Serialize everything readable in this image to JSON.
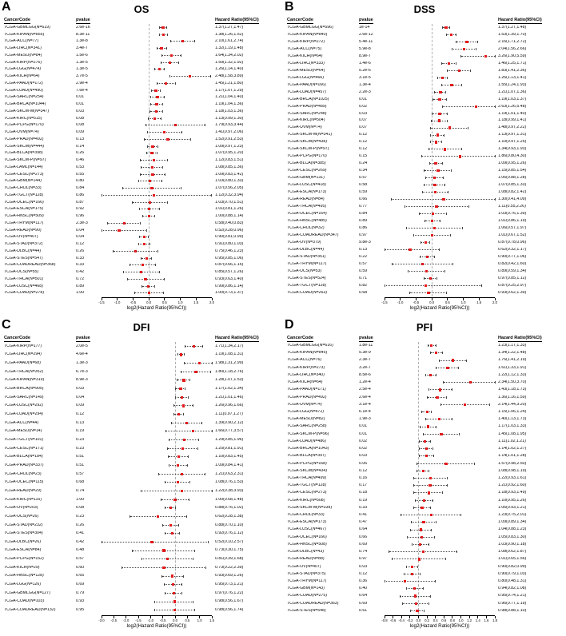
{
  "figure": {
    "background": "#ffffff",
    "point_color": "#e31a1c",
    "ci_line_color": "#444444",
    "zero_line_style": "dashed"
  },
  "chart_data": [
    {
      "type": "forest",
      "panel_letter": "A",
      "title": "OS",
      "xlabel": "log2(Hazard Ratio(95%CI))",
      "columns": [
        "CancerCode",
        "pvalue",
        "Hazard Ratio(95%CI)"
      ],
      "xlim": [
        -1.5,
        2.0
      ],
      "xticks": [
        -1.5,
        -1.0,
        -0.5,
        0.0,
        0.5,
        1.0,
        1.5,
        2.0
      ],
      "rows": [
        [
          "TCGA-GBMLGG(N=619)",
          "2.6e-16",
          "1.37(1.27,1.47)"
        ],
        [
          "TCGA-KIPAN(N=855)",
          "8.3e-11",
          "1.38(1.26,1.52)"
        ],
        [
          "TCGA-ACC(N=77)",
          "1.3e-8",
          "2.10(1.61,2.74)"
        ],
        [
          "TCGA-LIHC(N=341)",
          "3.4e-7",
          "1.32(1.19,1.48)"
        ],
        [
          "TCGA-MESO(N=84)",
          "1.5e-6",
          "1.64(1.34,2.02)"
        ],
        [
          "TCGA-KIRP(N=276)",
          "1.3e-5",
          "1.59(1.32,1.92)"
        ],
        [
          "TCGA-LGG(N=474)",
          "1.3e-5",
          "1.26(1.14,1.40)"
        ],
        [
          "TCGA-KICH(N=64)",
          "3.7e-5",
          "2.48(1.58,3.89)"
        ],
        [
          "TCGA-PAAD(N=172)",
          "2.9e-4",
          "1.45(1.21,1.80)"
        ],
        [
          "TCGA-LUAD(N=490)",
          "7.6e-4",
          "1.17(1.07,1.29)"
        ],
        [
          "TCGA-SARC(N=254)",
          "0.01",
          "1.21(1.04,1.40)"
        ],
        [
          "TCGA-BRCA(N=1044)",
          "0.01",
          "1.19(1.04,1.36)"
        ],
        [
          "TCGA-SKCM-M(N=347)",
          "0.03",
          "1.18(1.03,1.36)"
        ],
        [
          "TCGA-KIRC(N=515)",
          "0.08",
          "1.13(0.99,1.30)"
        ],
        [
          "TCGA-PCPG(N=170)",
          "0.08",
          "1.79(0.93,3.44)"
        ],
        [
          "TCGA-UVM(N=74)",
          "0.09",
          "1.41(0.97,2.06)"
        ],
        [
          "TCGA-PRAD(N=492)",
          "0.13",
          "1.52(0.91,2.53)"
        ],
        [
          "TCGA-SKCM(N=444)",
          "0.14",
          "1.09(0.97,1.23)"
        ],
        [
          "TCGA-BLCA(N=398)",
          "0.26",
          "1.07(0.95,1.20)"
        ],
        [
          "TCGA-SKCM-P(N=97)",
          "0.46",
          "1.12(0.83,1.51)"
        ],
        [
          "TCGA-LAML(N=144)",
          "0.53",
          "1.08(0.85,1.36)"
        ],
        [
          "TCGA-CESC(N=273)",
          "0.55",
          "1.09(0.83,1.42)"
        ],
        [
          "TCGA-GBM(N=144)",
          "0.80",
          "1.03(0.80,1.33)"
        ],
        [
          "TCGA-CHOL(N=33)",
          "0.84",
          "1.07(0.56,2.05)"
        ],
        [
          "TCGA-TGCT(N=128)",
          "0.86",
          "1.12(0.32,3.94)"
        ],
        [
          "TCGA-UCEC(N=166)",
          "0.87",
          "1.03(0.70,1.51)"
        ],
        [
          "TCGA-ESCA(N=175)",
          "0.92",
          "1.01(0.81,1.26)"
        ],
        [
          "TCGA-HNSC(N=509)",
          "0.96",
          "1.00(0.88,1.14)"
        ],
        [
          "TCGA-THYM(N=117)",
          "2.3e-3",
          "0.58(0.40,0.83)"
        ],
        [
          "TCGA-READ(N=90)",
          "0.04",
          "0.52(0.28,0.96)"
        ],
        [
          "TCGA-OV(N=407)",
          "0.04",
          "0.90(0.81,0.99)"
        ],
        [
          "TCGA-STAD(N=372)",
          "0.12",
          "0.91(0.80,1.03)"
        ],
        [
          "TCGA-DLBC(N=44)",
          "0.26",
          "0.75(0.46,1.23)"
        ],
        [
          "TCGA-STES(N=547)",
          "0.33",
          "0.95(0.85,1.06)"
        ],
        [
          "TCGA-COADREAD(N=368)",
          "0.33",
          "0.87(0.66,1.15)"
        ],
        [
          "TCGA-UCS(N=55)",
          "0.42",
          "0.85(0.57,1.26)"
        ],
        [
          "TCGA-THCA(N=501)",
          "0.72",
          "0.93(0.63,1.40)"
        ],
        [
          "TCGA-LUSC(N=468)",
          "0.89",
          "0.99(0.86,1.14)"
        ],
        [
          "TCGA-COAD(N=278)",
          "1.00",
          "1.00(0.73,1.37)"
        ]
      ]
    },
    {
      "type": "forest",
      "panel_letter": "B",
      "title": "DSS",
      "xlabel": "log2(Hazard Ratio(95%CI))",
      "columns": [
        "CancerCode",
        "pvalue",
        "Hazard Ratio(95%CI)"
      ],
      "xlim": [
        -1.5,
        2.0
      ],
      "xticks": [
        -1.5,
        -1.0,
        -0.5,
        0.0,
        0.5,
        1.0,
        1.5,
        2.0
      ],
      "rows": [
        [
          "TCGA-GBMLGG(N=596)",
          "1e-14",
          "1.37(1.27,1.48)"
        ],
        [
          "TCGA-KIPAN(N=840)",
          "2.6e-12",
          "1.53(1.39,1.70)"
        ],
        [
          "TCGA-KIRP(N=272)",
          "5.4e-11",
          "2.16(1.71,2.72)"
        ],
        [
          "TCGA-ACC(N=75)",
          "5.9e-8",
          "2.04(1.56,2.66)"
        ],
        [
          "TCGA-KICH(N=64)",
          "8.9e-7",
          "3.26(1.90,5.59)"
        ],
        [
          "TCGA-LIHC(N=333)",
          "1.4e-6",
          "1.46(1.25,1.71)"
        ],
        [
          "TCGA-MESO(N=64)",
          "5.2e-6",
          "1.83(1.41,2.36)"
        ],
        [
          "TCGA-LGG(N=466)",
          "3.1e-5",
          "1.26(1.13,1.41)"
        ],
        [
          "TCGA-PAAD(N=166)",
          "1.3e-4",
          "1.55(1.24,1.93)"
        ],
        [
          "TCGA-LUAD(N=457)",
          "2.2e-3",
          "1.21(1.07,1.36)"
        ],
        [
          "TCGA-BRCA(N=1025)",
          "0.01",
          "1.19(1.03,1.37)"
        ],
        [
          "TCGA-PRAD(N=489)",
          "0.02",
          "2.63(1.26,5.48)"
        ],
        [
          "TCGA-SARC(N=248)",
          "0.03",
          "1.19(1.01,1.40)"
        ],
        [
          "TCGA-KIRC(N=504)",
          "0.07",
          "1.18(0.99,1.41)"
        ],
        [
          "TCGA-UVM(N=74)",
          "0.07",
          "1.48(0.97,2.22)"
        ],
        [
          "TCGA-SKCM-M(N=341)",
          "0.12",
          "1.13(0.97,1.31)"
        ],
        [
          "TCGA-SKCM(N=438)",
          "0.12",
          "1.10(0.97,1.25)"
        ],
        [
          "TCGA-SKCM-P(N=97)",
          "0.12",
          "1.34(0.93,1.93)"
        ],
        [
          "TCGA-PCPG(N=170)",
          "0.15",
          "1.86(0.80,4.30)"
        ],
        [
          "TCGA-BLCA(N=385)",
          "0.24",
          "1.09(0.95,1.26)"
        ],
        [
          "TCGA-CESC(N=269)",
          "0.34",
          "1.15(0.85,1.54)"
        ],
        [
          "TCGA-GBM(N=131)",
          "0.57",
          "1.06(0.88,1.28)"
        ],
        [
          "TCGA-LUSC(N=418)",
          "0.58",
          "1.07(0.85,1.33)"
        ],
        [
          "TCGA-ESCA(N=173)",
          "0.59",
          "1.08(0.82,1.42)"
        ],
        [
          "TCGA-READ(N=84)",
          "0.66",
          "1.30(0.41,4.09)"
        ],
        [
          "TCGA-THCA(N=495)",
          "0.77",
          "1.11(0.55,2.26)"
        ],
        [
          "TCGA-UCEC(N=164)",
          "0.84",
          "1.03(0.76,1.39)"
        ],
        [
          "TCGA-HNSC(N=485)",
          "0.89",
          "1.01(0.86,1.19)"
        ],
        [
          "TCGA-CHOL(N=32)",
          "0.86",
          "1.06(0.57,1.97)"
        ],
        [
          "TCGA-COADREAD(N=347)",
          "0.97",
          "1.01(0.67,1.52)"
        ],
        [
          "TCGA-OV(N=379)",
          "9.8e-3",
          "0.87(0.78,0.96)"
        ],
        [
          "TCGA-DLBC(N=44)",
          "0.13",
          "0.62(0.32,1.17)"
        ],
        [
          "TCGA-STAD(N=351)",
          "0.22",
          "0.90(0.77,1.06)"
        ],
        [
          "TCGA-THYM(N=117)",
          "0.57",
          "0.82(0.42,1.60)"
        ],
        [
          "TCGA-UCS(N=53)",
          "0.59",
          "0.89(0.59,1.34)"
        ],
        [
          "TCGA-STES(N=524)",
          "0.71",
          "0.97(0.85,1.12)"
        ],
        [
          "TCGA-TGCT(N=128)",
          "0.82",
          "0.87(0.25,2.97)"
        ],
        [
          "TCGA-COAD(N=263)",
          "0.68",
          "0.93(0.62,1.39)"
        ]
      ]
    },
    {
      "type": "forest",
      "panel_letter": "C",
      "title": "DFI",
      "xlabel": "log2(Hazard Ratio(95%CI))",
      "columns": [
        "CancerCode",
        "pvalue",
        "Hazard Ratio(95%CI)"
      ],
      "xlim": [
        -3.0,
        1.5
      ],
      "xticks": [
        -3.0,
        -2.5,
        -2.0,
        -1.5,
        -1.0,
        -0.5,
        0.0,
        0.5,
        1.0,
        1.5
      ],
      "rows": [
        [
          "TCGA-KIRP(N=177)",
          "2.0e-5",
          "1.71(1.34,2.17)"
        ],
        [
          "TCGA-LIHC(N=294)",
          "4.6e-4",
          "1.19(1.08,1.31)"
        ],
        [
          "TCGA-PAAD(N=68)",
          "1.3e-3",
          "1.98(1.31,2.99)"
        ],
        [
          "TCGA-THCA(N=352)",
          "6.7e-3",
          "1.80(1.18,2.76)"
        ],
        [
          "TCGA-KIPAN(N=319)",
          "8.9e-3",
          "1.28(1.07,1.53)"
        ],
        [
          "TCGA-BRCA(N=905)",
          "0.03",
          "1.17(1.02,1.34)"
        ],
        [
          "TCGA-SARC(N=149)",
          "0.04",
          "1.21(1.01,1.46)"
        ],
        [
          "TCGA-LUSC(N=292)",
          "0.09",
          "1.26(0.96,1.66)"
        ],
        [
          "TCGA-LUAD(N=294)",
          "0.12",
          "1.11(0.97,1.27)"
        ],
        [
          "TCGA-ACC(N=44)",
          "0.13",
          "1.39(0.90,2.12)"
        ],
        [
          "TCGA-MESO(N=14)",
          "0.19",
          "1.66(0.77,3.57)"
        ],
        [
          "TCGA-TGCT(N=101)",
          "0.23",
          "1.29(0.85,1.96)"
        ],
        [
          "TCGA-CESC(N=171)",
          "0.23",
          "1.25(0.81,1.91)"
        ],
        [
          "TCGA-BLCA(N=184)",
          "0.51",
          "1.10(0.83,1.45)"
        ],
        [
          "TCGA-PRAD(N=337)",
          "0.51",
          "1.09(0.84,1.41)"
        ],
        [
          "TCGA-CHOL(N=23)",
          "0.57",
          "1.21(0.63,2.31)"
        ],
        [
          "TCGA-UCEC(N=115)",
          "0.68",
          "1.08(0.76,1.53)"
        ],
        [
          "TCGA-READ(N=29)",
          "0.74",
          "1.22(0.38,3.93)"
        ],
        [
          "TCGA-KIRC(N=115)",
          "1.00",
          "1.00(0.68,1.48)"
        ],
        [
          "TCGA-OV(N=203)",
          "0.08",
          "0.88(0.76,1.02)"
        ],
        [
          "TCGA-UCS(N=26)",
          "0.23",
          "0.62(0.28,1.38)"
        ],
        [
          "TCGA-STAD(N=232)",
          "0.26",
          "0.88(0.70,1.10)"
        ],
        [
          "TCGA-STES(N=304)",
          "0.41",
          "0.92(0.76,1.12)"
        ],
        [
          "TCGA-DLBC(N=26)",
          "0.42",
          "0.52(0.10,2.57)"
        ],
        [
          "TCGA-ESCA(N=84)",
          "0.48",
          "0.73(0.30,1.75)"
        ],
        [
          "TCGA-PCPG(N=152)",
          "0.57",
          "0.81(0.39,1.68)"
        ],
        [
          "TCGA-KICH(N=29)",
          "0.60",
          "0.73(0.22,2.39)"
        ],
        [
          "TCGA-HNSC(N=128)",
          "0.65",
          "0.93(0.69,1.26)"
        ],
        [
          "TCGA-LGG(N=126)",
          "0.69",
          "0.95(0.73,1.21)"
        ],
        [
          "TCGA-GBMLGG(N=127)",
          "0.79",
          "0.97(0.76,1.22)"
        ],
        [
          "TCGA-COAD(N=103)",
          "0.93",
          "0.98(0.56,1.67)"
        ],
        [
          "TCGA-COADREAD(N=132)",
          "0.95",
          "0.98(0.56,1.74)"
        ]
      ]
    },
    {
      "type": "forest",
      "panel_letter": "D",
      "title": "PFI",
      "xlabel": "log2(Hazard Ratio(95%CI))",
      "columns": [
        "CancerCode",
        "pvalue",
        "Hazard Ratio(95%CI)"
      ],
      "xlim": [
        -0.8,
        1.8
      ],
      "xticks": [
        -0.8,
        -0.6,
        -0.4,
        -0.2,
        0.0,
        0.2,
        0.4,
        0.6,
        0.8,
        1.0,
        1.2,
        1.4,
        1.6,
        1.8
      ],
      "rows": [
        [
          "TCGA-GBMLGG(N=616)",
          "1.8e-11",
          "1.23(1.17,1.33)"
        ],
        [
          "TCGA-KIPAN(N=845)",
          "5.3e-9",
          "1.34(1.22,1.48)"
        ],
        [
          "TCGA-ACC(N=76)",
          "2.3e-7",
          "1.76(1.41,2.19)"
        ],
        [
          "TCGA-KIRP(N=273)",
          "3.2e-7",
          "1.61(1.33,1.91)"
        ],
        [
          "TCGA-LIHC(N=340)",
          "8.5e-6",
          "1.22(1.12,1.33)"
        ],
        [
          "TCGA-KICH(N=64)",
          "1.2e-4",
          "2.34(1.50,3.70)"
        ],
        [
          "TCGA-PAAD(N=171)",
          "2.5e-4",
          "1.43(1.18,1.73)"
        ],
        [
          "TCGA-PRAD(N=492)",
          "2.6e-4",
          "1.36(1.16,1.59)"
        ],
        [
          "TCGA-UVM(N=74)",
          "3.1e-4",
          "2.14(1.44,3.20)"
        ],
        [
          "TCGA-LGG(N=472)",
          "6.1e-4",
          "1.15(1.06,1.24)"
        ],
        [
          "TCGA-MESO(N=82)",
          "1.9e-3",
          "1.40(1.13,1.73)"
        ],
        [
          "TCGA-SARC(N=258)",
          "0.01",
          "1.17(1.03,1.33)"
        ],
        [
          "TCGA-SKCM-P(N=96)",
          "0.01",
          "1.45(1.08,1.95)"
        ],
        [
          "TCGA-LUAD(N=486)",
          "0.02",
          "1.11(1.02,1.21)"
        ],
        [
          "TCGA-BRCA(N=1043)",
          "0.02",
          "1.14(1.02,1.27)"
        ],
        [
          "TCGA-BLCA(N=397)",
          "0.03",
          "1.14(1.01,1.28)"
        ],
        [
          "TCGA-PCPG(N=168)",
          "0.06",
          "1.57(0.98,2.50)"
        ],
        [
          "TCGA-SKCM(N=434)",
          "0.12",
          "1.08(0.98,1.19)"
        ],
        [
          "TCGA-THCA(N=499)",
          "0.16",
          "1.22(0.93,1.61)"
        ],
        [
          "TCGA-TGCT(N=128)",
          "0.17",
          "1.21(0.92,1.60)"
        ],
        [
          "TCGA-CESC(N=273)",
          "0.18",
          "1.18(0.93,1.49)"
        ],
        [
          "TCGA-KIRC(N=508)",
          "0.19",
          "1.10(0.95,1.26)"
        ],
        [
          "TCGA-SKCM-M(N=338)",
          "0.33",
          "1.06(0.93,1.21)"
        ],
        [
          "TCGA-CHOL(N=33)",
          "0.41",
          "1.23(0.75,2.01)"
        ],
        [
          "TCGA-ESCA(N=173)",
          "0.47",
          "1.09(0.89,1.34)"
        ],
        [
          "TCGA-LUSC(N=467)",
          "0.64",
          "1.04(0.88,1.23)"
        ],
        [
          "TCGA-UCEC(N=166)",
          "0.66",
          "1.05(0.83,1.30)"
        ],
        [
          "TCGA-HNSC(N=508)",
          "0.69",
          "1.03(0.90,1.18)"
        ],
        [
          "TCGA-DLBC(N=43)",
          "0.74",
          "1.08(0.62,1.87)"
        ],
        [
          "TCGA-READ(N=88)",
          "0.97",
          "1.01(0.65,1.56)"
        ],
        [
          "TCGA-OV(N=407)",
          "0.03",
          "0.90(0.82,0.99)"
        ],
        [
          "TCGA-STAD(N=375)",
          "0.12",
          "0.90(0.79,1.03)"
        ],
        [
          "TCGA-THYM(N=117)",
          "0.36",
          "0.80(0.48,1.31)"
        ],
        [
          "TCGA-GBM(N=143)",
          "0.40",
          "0.94(0.82,1.08)"
        ],
        [
          "TCGA-COAD(N=275)",
          "0.64",
          "0.95(0.74,1.21)"
        ],
        [
          "TCGA-COADREAD(N=363)",
          "0.69",
          "0.96(0.77,1.19)"
        ],
        [
          "TCGA-STES(N=548)",
          "0.61",
          "0.98(0.88,1.10)"
        ]
      ]
    }
  ]
}
